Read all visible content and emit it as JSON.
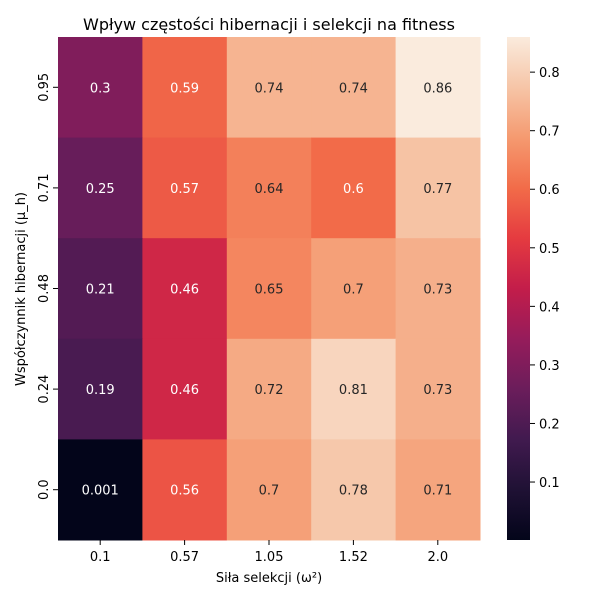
{
  "chart_data": {
    "type": "heatmap",
    "title": "Wpływ częstości hibernacji i selekcji na fitness",
    "xlabel": "Siła selekcji (ω²)",
    "ylabel": "Współczynnik hibernacji (μ_h)",
    "x_categories": [
      "0.1",
      "0.57",
      "1.05",
      "1.52",
      "2.0"
    ],
    "y_categories": [
      "0.95",
      "0.71",
      "0.48",
      "0.24",
      "0.0"
    ],
    "values": [
      [
        0.3,
        0.59,
        0.74,
        0.74,
        0.86
      ],
      [
        0.25,
        0.57,
        0.64,
        0.6,
        0.77
      ],
      [
        0.21,
        0.46,
        0.65,
        0.7,
        0.73
      ],
      [
        0.19,
        0.46,
        0.72,
        0.81,
        0.73
      ],
      [
        0.001,
        0.56,
        0.7,
        0.78,
        0.71
      ]
    ],
    "cell_labels": [
      [
        "0.3",
        "0.59",
        "0.74",
        "0.74",
        "0.86"
      ],
      [
        "0.25",
        "0.57",
        "0.64",
        "0.6",
        "0.77"
      ],
      [
        "0.21",
        "0.46",
        "0.65",
        "0.7",
        "0.73"
      ],
      [
        "0.19",
        "0.46",
        "0.72",
        "0.81",
        "0.73"
      ],
      [
        "0.001",
        "0.56",
        "0.7",
        "0.78",
        "0.71"
      ]
    ],
    "colorbar": {
      "vmin": 0.001,
      "vmax": 0.86,
      "ticks": [
        "0.1",
        "0.2",
        "0.3",
        "0.4",
        "0.5",
        "0.6",
        "0.7",
        "0.8"
      ],
      "colormap": "rocket"
    }
  }
}
